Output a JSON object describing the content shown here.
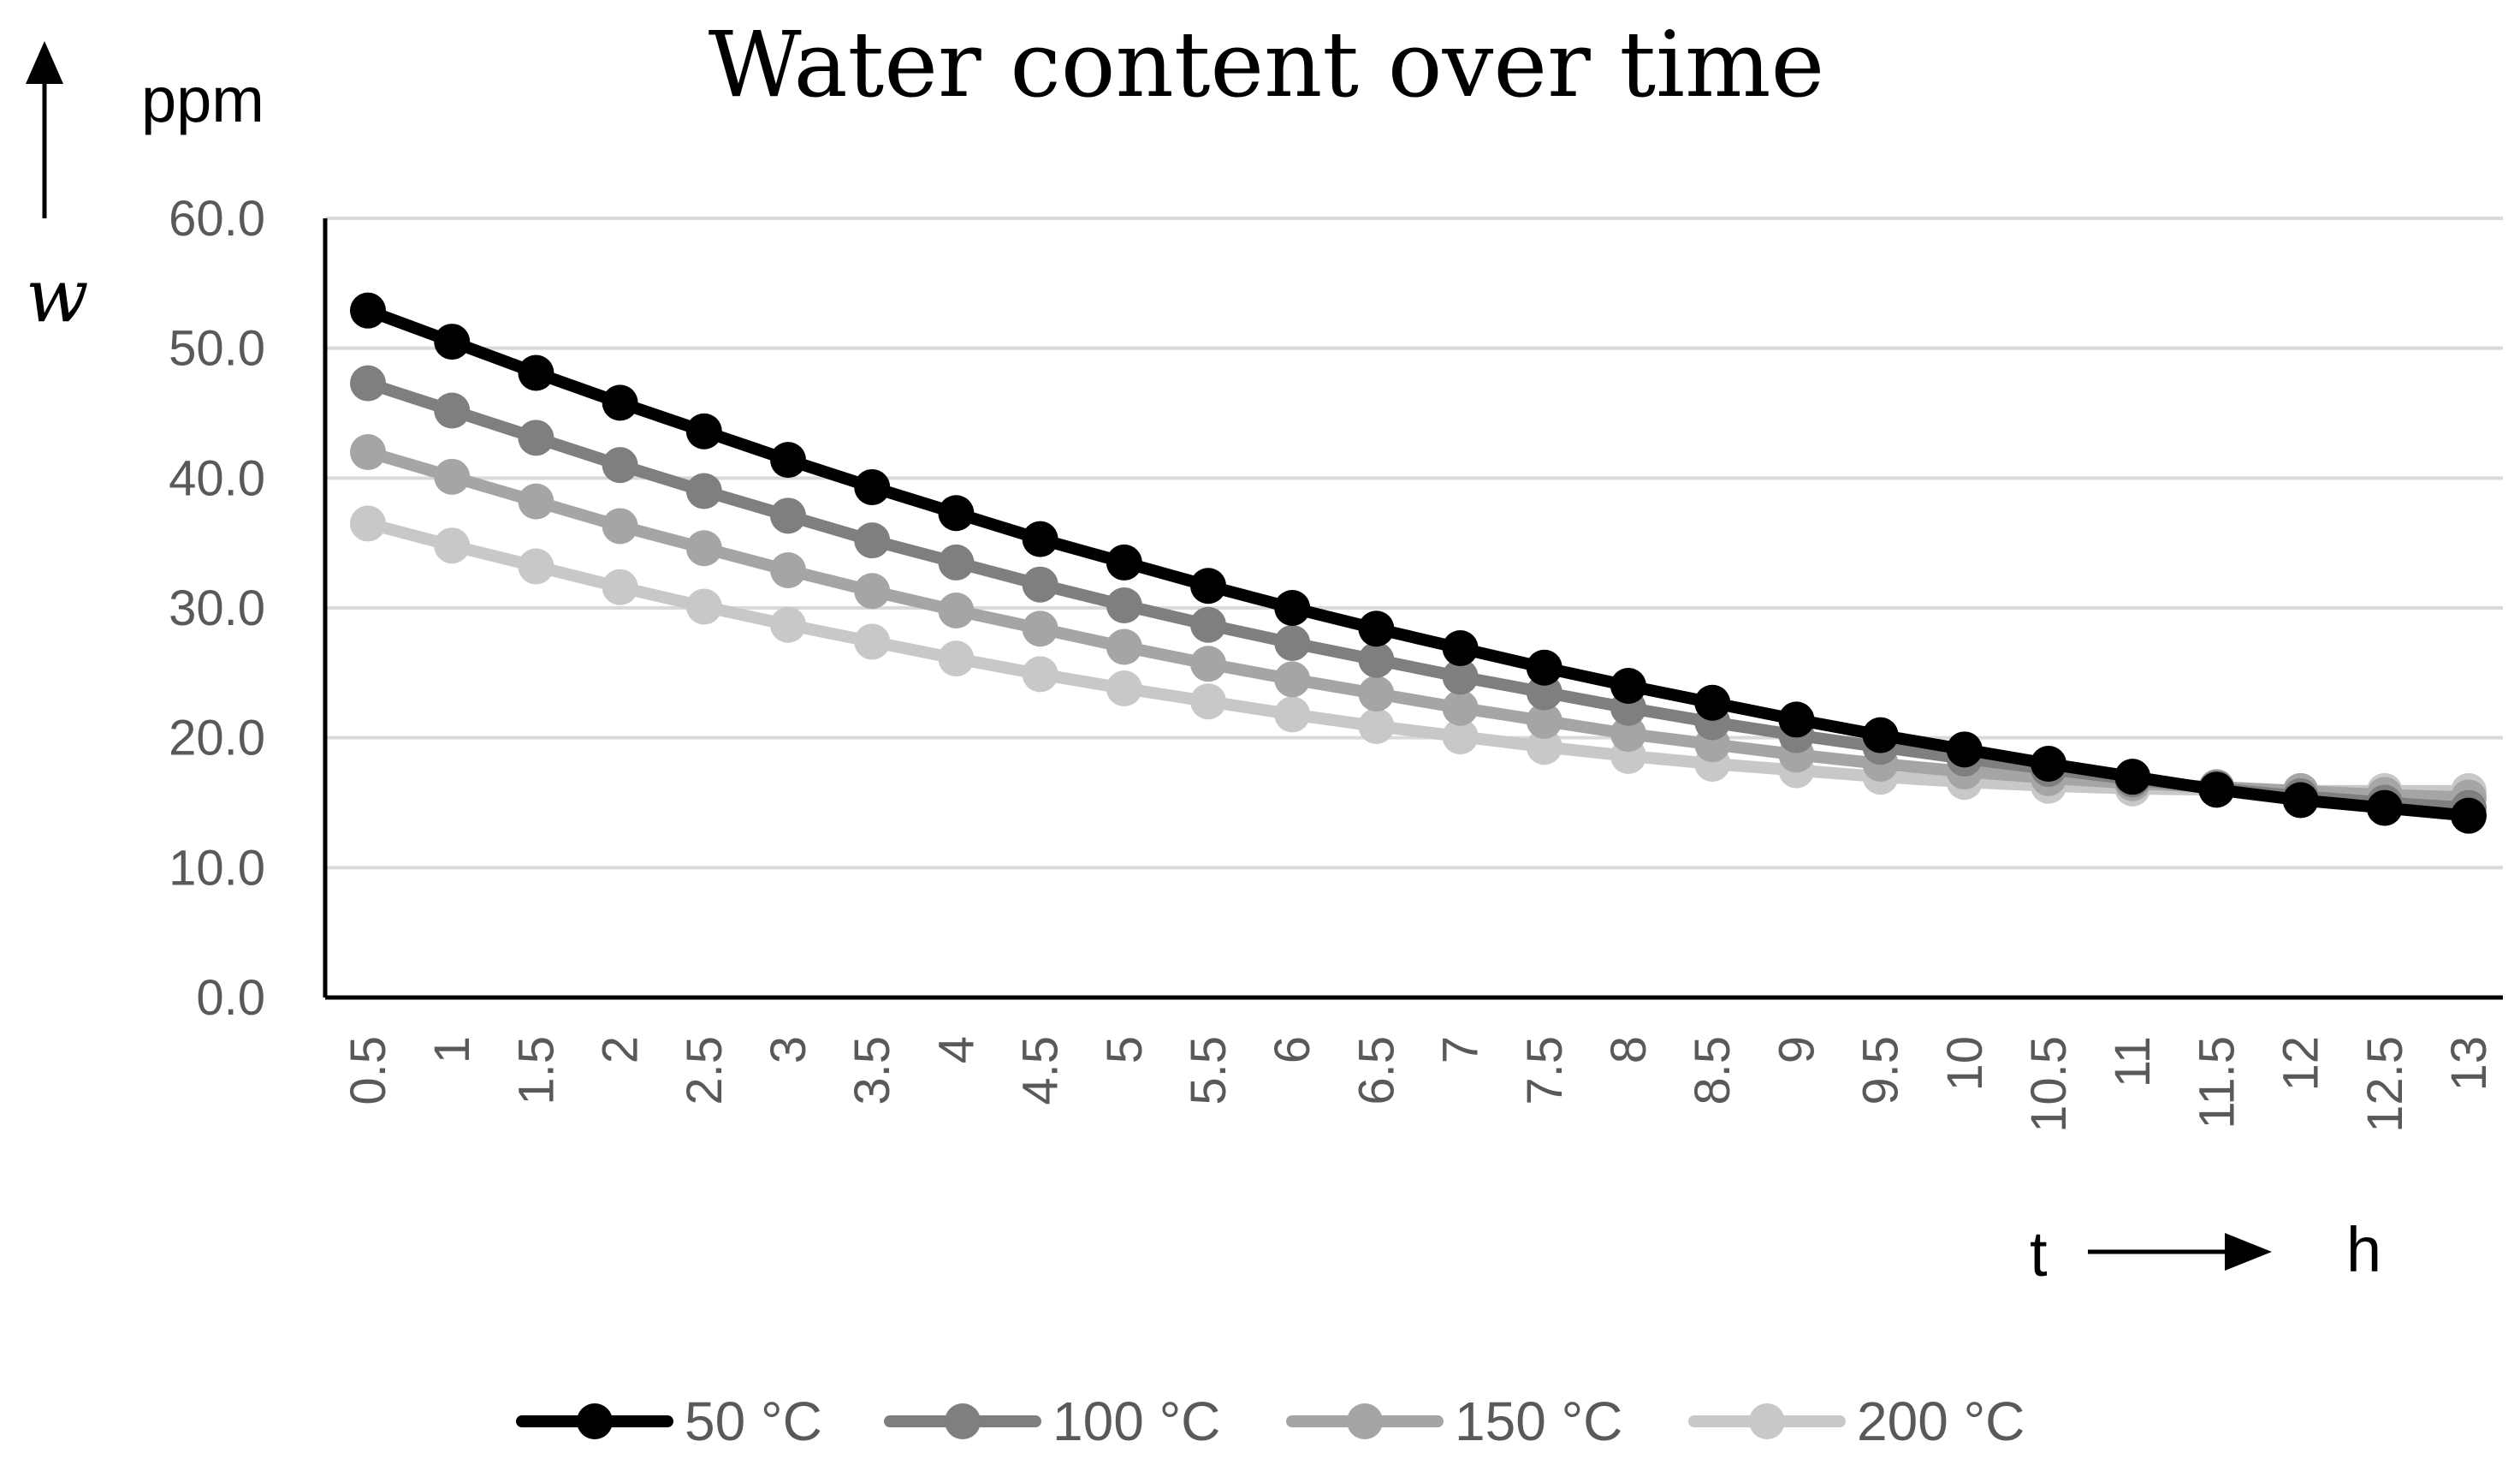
{
  "chart_data": {
    "type": "line",
    "title": "Water content over time",
    "ylabel": "w",
    "yunit": "ppm",
    "xlabel": "t",
    "xunit": "h",
    "ylim": [
      0,
      60
    ],
    "yticks": [
      "0.0",
      "10.0",
      "20.0",
      "30.0",
      "40.0",
      "50.0",
      "60.0"
    ],
    "grid": true,
    "legend_position": "bottom",
    "categories": [
      "0.5",
      "1",
      "1.5",
      "2",
      "2.5",
      "3",
      "3.5",
      "4",
      "4.5",
      "5",
      "5.5",
      "6",
      "6.5",
      "7",
      "7.5",
      "8",
      "8.5",
      "9",
      "9.5",
      "10",
      "10.5",
      "11",
      "11.5",
      "12",
      "12.5",
      "13"
    ],
    "series": [
      {
        "name": "50 °C",
        "color": "#000000",
        "values": [
          52.9,
          50.5,
          48.1,
          45.8,
          43.6,
          41.4,
          39.3,
          37.3,
          35.3,
          33.5,
          31.7,
          30.0,
          28.4,
          26.9,
          25.4,
          24.0,
          22.7,
          21.4,
          20.2,
          19.1,
          18.0,
          17.0,
          16.0,
          15.2,
          14.6,
          14.0
        ]
      },
      {
        "name": "100 °C",
        "color": "#7f7f7f",
        "values": [
          47.3,
          45.2,
          43.1,
          41.0,
          39.0,
          37.1,
          35.2,
          33.5,
          31.8,
          30.2,
          28.7,
          27.3,
          26.0,
          24.7,
          23.5,
          22.3,
          21.2,
          20.2,
          19.3,
          18.4,
          17.6,
          16.8,
          16.1,
          15.5,
          15.0,
          14.6
        ]
      },
      {
        "name": "150 °C",
        "color": "#a5a5a5",
        "values": [
          42.0,
          40.1,
          38.2,
          36.3,
          34.6,
          32.9,
          31.3,
          29.8,
          28.4,
          27.0,
          25.7,
          24.5,
          23.4,
          22.3,
          21.3,
          20.3,
          19.5,
          18.7,
          18.0,
          17.4,
          16.9,
          16.5,
          16.2,
          15.9,
          15.6,
          15.4
        ]
      },
      {
        "name": "200 °C",
        "color": "#c8c8c8",
        "values": [
          36.5,
          34.8,
          33.2,
          31.6,
          30.1,
          28.7,
          27.4,
          26.1,
          24.9,
          23.8,
          22.8,
          21.8,
          20.9,
          20.1,
          19.3,
          18.6,
          18.0,
          17.5,
          17.0,
          16.6,
          16.3,
          16.1,
          16.0,
          15.9,
          15.9,
          15.9
        ]
      }
    ]
  }
}
